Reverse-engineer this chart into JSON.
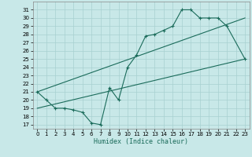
{
  "xlabel": "Humidex (Indice chaleur)",
  "bg_color": "#c8e8e8",
  "grid_color": "#a8d0d0",
  "line_color": "#1a6b5a",
  "xlim": [
    -0.5,
    23.5
  ],
  "ylim": [
    16.5,
    32.0
  ],
  "xticks": [
    0,
    1,
    2,
    3,
    4,
    5,
    6,
    7,
    8,
    9,
    10,
    11,
    12,
    13,
    14,
    15,
    16,
    17,
    18,
    19,
    20,
    21,
    22,
    23
  ],
  "yticks": [
    17,
    18,
    19,
    20,
    21,
    22,
    23,
    24,
    25,
    26,
    27,
    28,
    29,
    30,
    31
  ],
  "line1_x": [
    0,
    1,
    2,
    3,
    4,
    5,
    6,
    7,
    8,
    9,
    10,
    11,
    12,
    13,
    14,
    15,
    16,
    17,
    18,
    19,
    20,
    21,
    23
  ],
  "line1_y": [
    21,
    20,
    19,
    19,
    18.8,
    18.5,
    17.2,
    17,
    21.5,
    20,
    24,
    25.5,
    27.8,
    28,
    28.5,
    29,
    31,
    31,
    30,
    30,
    30,
    29,
    25
  ],
  "line2_x": [
    0,
    23
  ],
  "line2_y": [
    19,
    25
  ],
  "line3_x": [
    0,
    23
  ],
  "line3_y": [
    21,
    30
  ]
}
